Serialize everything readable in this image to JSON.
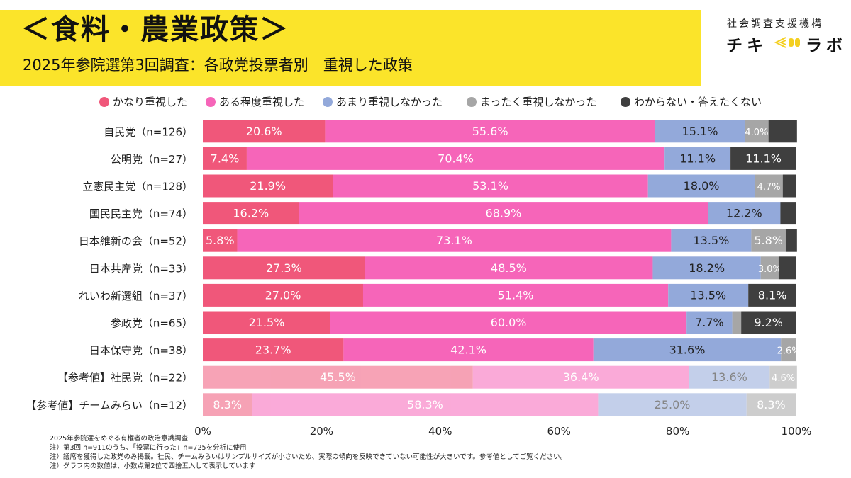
{
  "header": {
    "title": "＜食料・農業政策＞",
    "subtitle": "2025年参院選第3回調査：各政党投票者別　重視した政策"
  },
  "brand": {
    "org_name": "社会調査支援機構",
    "logo_left": "チキ",
    "logo_right": "ラボ"
  },
  "colors": {
    "very": "#f0577a",
    "somewhat": "#f665b9",
    "not_much": "#93a9da",
    "not_at_all": "#a6a6a6",
    "dk": "#3f3f3f"
  },
  "chart_data": {
    "type": "bar",
    "orientation": "horizontal",
    "stacked": true,
    "title": "",
    "xlim": [
      0,
      100
    ],
    "x_ticks": [
      "0%",
      "20%",
      "40%",
      "60%",
      "80%",
      "100%"
    ],
    "categories": [
      "自民党（n=126）",
      "公明党（n=27）",
      "立憲民主党（n=128）",
      "国民民主党（n=74）",
      "日本維新の会（n=52）",
      "日本共産党（n=33）",
      "れいわ新選組（n=37）",
      "参政党（n=65）",
      "日本保守党（n=38）",
      "【参考値】社民党（n=22）",
      "【参考値】チームみらい（n=12）"
    ],
    "reference_rows": [
      9,
      10
    ],
    "series": [
      {
        "name": "かなり重視した",
        "values": [
          20.6,
          7.4,
          21.9,
          16.2,
          5.8,
          27.3,
          27.0,
          21.5,
          23.7,
          45.5,
          8.3
        ],
        "labels": [
          "20.6%",
          "7.4%",
          "21.9%",
          "16.2%",
          "5.8%",
          "27.3%",
          "27.0%",
          "21.5%",
          "23.7%",
          "45.5%",
          "8.3%"
        ]
      },
      {
        "name": "ある程度重視した",
        "values": [
          55.6,
          70.4,
          53.1,
          68.9,
          73.1,
          48.5,
          51.4,
          60.0,
          42.1,
          36.4,
          58.3
        ],
        "labels": [
          "55.6%",
          "70.4%",
          "53.1%",
          "68.9%",
          "73.1%",
          "48.5%",
          "51.4%",
          "60.0%",
          "42.1%",
          "36.4%",
          "58.3%"
        ]
      },
      {
        "name": "あまり重視しなかった",
        "values": [
          15.1,
          11.1,
          18.0,
          12.2,
          13.5,
          18.2,
          13.5,
          7.7,
          31.6,
          13.6,
          25.0
        ],
        "labels": [
          "15.1%",
          "11.1%",
          "18.0%",
          "12.2%",
          "13.5%",
          "18.2%",
          "13.5%",
          "7.7%",
          "31.6%",
          "13.6%",
          "25.0%"
        ]
      },
      {
        "name": "まったく重視しなかった",
        "values": [
          4.0,
          0.0,
          4.7,
          0.0,
          5.8,
          3.0,
          0.0,
          1.5,
          2.6,
          4.6,
          8.3
        ],
        "labels": [
          "4.0%",
          "",
          "4.7%",
          "",
          "5.8%",
          "3.0%",
          "",
          "",
          "2.6%",
          "4.6%",
          "8.3%"
        ]
      },
      {
        "name": "わからない・答えたくない",
        "values": [
          4.8,
          11.1,
          2.3,
          2.7,
          1.9,
          3.0,
          8.1,
          9.2,
          0.0,
          0.0,
          0.0
        ],
        "labels": [
          "",
          "11.1%",
          "",
          "",
          "",
          "",
          "8.1%",
          "9.2%",
          "",
          "",
          ""
        ]
      }
    ]
  },
  "notes": [
    "2025年参院選をめぐる有権者の政治意識調査",
    "注）第3回 n=911のうち、「投票に行った」n=725を分析に使用",
    "注）議席を獲得した政党のみ掲載。社民、チームみらいはサンプルサイズが小さいため、実際の傾向を反映できていない可能性が大きいです。参考値としてご覧ください。",
    "注）グラフ内の数値は、小数点第2位で四捨五入して表示しています"
  ]
}
